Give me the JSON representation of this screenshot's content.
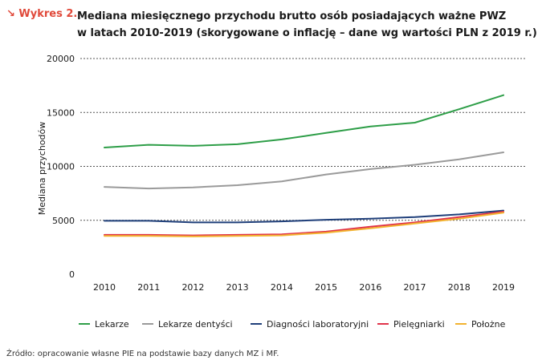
{
  "header": {
    "prefix": "↘ Wykres 2.",
    "title_line1": "Mediana miesięcznego przychodu brutto osób posiadających ważne PWZ",
    "title_line2": "w latach 2010-2019 (skorygowane o inflację – dane wg wartości PLN z 2019 r.)"
  },
  "source": "Źródło: opracowanie własne PIE na podstawie bazy danych MZ i MF.",
  "chart_data": {
    "type": "line",
    "title": "Mediana miesięcznego przychodu brutto osób posiadających ważne PWZ w latach 2010-2019 (skorygowane o inflację – dane wg wartości PLN z 2019 r.)",
    "xlabel": "",
    "ylabel": "Mediana przychodów",
    "x": [
      "2010",
      "2011",
      "2012",
      "2013",
      "2014",
      "2015",
      "2016",
      "2017",
      "2018",
      "2019"
    ],
    "yticks": [
      "0",
      "5000",
      "10000",
      "15000",
      "20000"
    ],
    "ylim": [
      0,
      20000
    ],
    "grid": "horizontal dashed",
    "legend_position": "bottom",
    "series": [
      {
        "name": "Lekarze",
        "color": "#2e9e48",
        "values": [
          11750,
          12000,
          11900,
          12050,
          12500,
          13100,
          13700,
          14050,
          15300,
          16600
        ]
      },
      {
        "name": "Lekarze dentyści",
        "color": "#9a9a9a",
        "values": [
          8100,
          7950,
          8050,
          8250,
          8600,
          9250,
          9750,
          10150,
          10650,
          11300
        ]
      },
      {
        "name": "Diagności laboratoryjni",
        "color": "#1f3f7a",
        "values": [
          4950,
          4950,
          4800,
          4800,
          4900,
          5050,
          5150,
          5300,
          5550,
          5900
        ]
      },
      {
        "name": "Pielęgniarki",
        "color": "#e0334a",
        "values": [
          3650,
          3650,
          3600,
          3650,
          3700,
          3950,
          4400,
          4800,
          5300,
          5800
        ]
      },
      {
        "name": "Położne",
        "color": "#f2b330",
        "values": [
          3550,
          3550,
          3500,
          3550,
          3600,
          3850,
          4250,
          4700,
          5150,
          5700
        ]
      }
    ]
  }
}
